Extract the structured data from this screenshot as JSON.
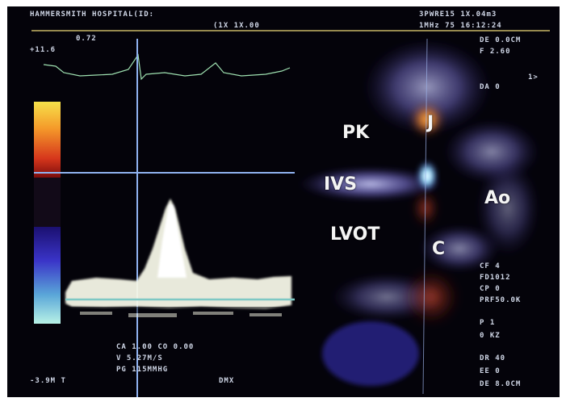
{
  "header": {
    "hospital_id": "HAMMERSMITH HOSPITAL(ID:",
    "line2": "(1X 1X.00",
    "scale_value": "+11.6",
    "velocity_value": "0.72"
  },
  "right_header": {
    "line1": "3PWRE15 1X.04m3",
    "line2": "1MHz 75 16:12:24",
    "line3": "DE 0.0CM",
    "line4": "F 2.60",
    "line5": "DA 0",
    "line6": "1>"
  },
  "right_panel": {
    "r1": "CF 4",
    "r2": "FD1012",
    "r3": "CP 0",
    "r4": "PRF50.0K",
    "r5": "P 1",
    "r6": "0 KZ",
    "r7": "DR 40",
    "r8": "EE 0",
    "r9": "DE 8.0CM"
  },
  "measurements": {
    "ca": "CA 1.00 CO 0.00",
    "v": "V 5.27M/S",
    "pg": "PG 115MMHG",
    "baseline": "-3.9M T",
    "dmx": "DMX"
  },
  "labels": {
    "pk": "PK",
    "j": "J",
    "ivs": "IVS",
    "ao": "Ao",
    "lvot": "LVOT",
    "c": "C"
  },
  "colors": {
    "frame": "#04030a",
    "doppler": "#f4f6e6",
    "color_jet": "#e0502a",
    "tissue": "#8c86e6",
    "crosshair": "#8fb2f0"
  }
}
